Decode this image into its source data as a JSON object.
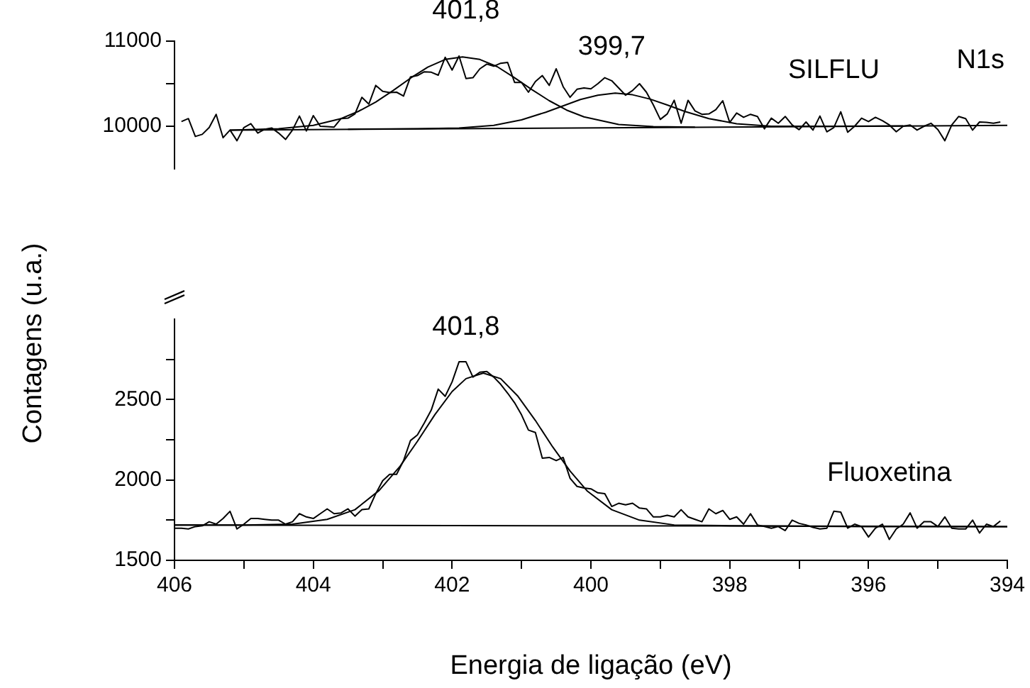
{
  "chart_data": [
    {
      "type": "line",
      "ylabel": "Contagens (u.a.)",
      "xlim": [
        406,
        394
      ],
      "ylim": [
        9500,
        11000
      ],
      "yticks": [
        {
          "value": 10000,
          "label": "10000"
        },
        {
          "value": 10500,
          "label": null
        },
        11000
      ],
      "tick_labels": "y",
      "grid": false,
      "legend": false,
      "marker": "none",
      "annotations": [
        "N1s",
        {
          "text": "401,8",
          "x": 401.8,
          "y": 10820
        },
        {
          "text": "399,7",
          "x": 399.7,
          "y": 10395
        },
        {
          "text": "SILFLU",
          "x": 396.5,
          "y": 10115
        }
      ],
      "series": [
        {
          "color": "#000000",
          "x": [
            405.9,
            405.8,
            405.7,
            405.6,
            405.5,
            405.4,
            405.3,
            405.2,
            405.1,
            405,
            404.9,
            404.8,
            404.7,
            404.6,
            404.5,
            404.4,
            404.3,
            404.2,
            404.1,
            404,
            403.9,
            403.8,
            403.7,
            403.6,
            403.5,
            403.4,
            403.3,
            403.2,
            403.1,
            403,
            402.9,
            402.8,
            402.7,
            402.6,
            402.5,
            402.4,
            402.3,
            402.2,
            402.1,
            402,
            401.9,
            401.8,
            401.7,
            401.6,
            401.5,
            401.4,
            401.3,
            401.2,
            401.1,
            401,
            400.9,
            400.8,
            400.7,
            400.6,
            400.5,
            400.4,
            400.3,
            400.2,
            400.1,
            400,
            399.9,
            399.8,
            399.7,
            399.6,
            399.5,
            399.4,
            399.3,
            399.2,
            399.1,
            399,
            398.9,
            398.8,
            398.7,
            398.6,
            398.5,
            398.4,
            398.3,
            398.2,
            398.1,
            398,
            397.9,
            397.8,
            397.7,
            397.6,
            397.5,
            397.4,
            397.3,
            397.2,
            397.1,
            397,
            396.9,
            396.8,
            396.7,
            396.6,
            396.5,
            396.4,
            396.3,
            396.2,
            396.1,
            396,
            395.9,
            395.8,
            395.7,
            395.6,
            395.5,
            395.4,
            395.3,
            395.2,
            395.1,
            395,
            394.9,
            394.8,
            394.7,
            394.6,
            394.5,
            394.4,
            394.3,
            394.2,
            394.1
          ],
          "values": [
            10055,
            10090,
            9880,
            9905,
            9985,
            10140,
            9865,
            9955,
            9830,
            9985,
            10030,
            9920,
            9965,
            9980,
            9920,
            9845,
            9955,
            10120,
            9945,
            10125,
            10000,
            9995,
            9990,
            10090,
            10095,
            10145,
            10340,
            10260,
            10480,
            10410,
            10395,
            10400,
            10355,
            10580,
            10595,
            10640,
            10635,
            10600,
            10810,
            10660,
            10825,
            10560,
            10570,
            10675,
            10730,
            10705,
            10740,
            10750,
            10515,
            10515,
            10400,
            10525,
            10595,
            10480,
            10675,
            10465,
            10340,
            10435,
            10450,
            10440,
            10500,
            10570,
            10535,
            10450,
            10365,
            10420,
            10500,
            10400,
            10250,
            10080,
            10145,
            10305,
            10035,
            10305,
            10180,
            10140,
            10145,
            10195,
            10300,
            10045,
            10155,
            10105,
            10140,
            10115,
            9970,
            10095,
            10035,
            10115,
            10015,
            9960,
            10050,
            9955,
            10120,
            9935,
            9985,
            10170,
            9930,
            10000,
            10095,
            10055,
            10105,
            10065,
            10015,
            9935,
            10000,
            10015,
            9955,
            10000,
            10035,
            9960,
            9830,
            10015,
            10115,
            10090,
            9955,
            10050,
            10045,
            10035,
            10050
          ]
        },
        {
          "color": "#000000",
          "x": [
            405.2,
            404.5,
            404,
            403.6,
            403.35,
            403.1,
            402.85,
            402.6,
            402.35,
            402.1,
            401.85,
            401.6,
            401.35,
            401.1,
            400.85,
            400.6,
            400.35,
            400.1,
            399.6,
            399.1,
            398.5
          ],
          "values": [
            9955,
            9970,
            10010,
            10090,
            10175,
            10285,
            10420,
            10565,
            10695,
            10785,
            10815,
            10785,
            10700,
            10570,
            10430,
            10300,
            10190,
            10110,
            10020,
            9995,
            9990
          ]
        },
        {
          "color": "#000000",
          "x": [
            403.5,
            402.5,
            401.9,
            401.4,
            401,
            400.65,
            400.4,
            400.15,
            399.9,
            399.65,
            399.4,
            399.15,
            398.9,
            398.65,
            398.3,
            397.9,
            397.4,
            396.5,
            395.5
          ],
          "values": [
            9965,
            9970,
            9980,
            10010,
            10075,
            10165,
            10240,
            10315,
            10365,
            10390,
            10370,
            10320,
            10250,
            10175,
            10090,
            10030,
            10000,
            10000,
            10005
          ]
        },
        {
          "color": "#000000",
          "x": [
            405.2,
            394
          ],
          "values": [
            9955,
            10010
          ]
        }
      ]
    },
    {
      "type": "line",
      "xlabel": "Energia de ligação (eV)",
      "xlim": [
        406,
        394
      ],
      "xticks": [
        406,
        {
          "value": 405,
          "label": null
        },
        404,
        {
          "value": 403,
          "label": null
        },
        402,
        {
          "value": 401,
          "label": null
        },
        400,
        {
          "value": 399,
          "label": null
        },
        398,
        {
          "value": 397,
          "label": null
        },
        396,
        {
          "value": 395,
          "label": null
        },
        394
      ],
      "ylim": [
        1500,
        3000
      ],
      "yticks": [
        1500,
        {
          "value": 1750,
          "label": null
        },
        2000,
        {
          "value": 2250,
          "label": null
        },
        2500,
        {
          "value": 2750,
          "label": null
        }
      ],
      "grid": false,
      "legend": false,
      "marker": "none",
      "annotations": [
        {
          "text": "401,8",
          "x": 401.8,
          "y": 2665
        },
        {
          "text": "Fluoxetina",
          "x": 395.7,
          "y": 1755
        }
      ],
      "series": [
        {
          "color": "#000000",
          "x": [
            406,
            405.9,
            405.8,
            405.7,
            405.6,
            405.5,
            405.4,
            405.3,
            405.2,
            405.1,
            405,
            404.9,
            404.8,
            404.7,
            404.6,
            404.5,
            404.4,
            404.3,
            404.2,
            404.1,
            404,
            403.9,
            403.8,
            403.7,
            403.6,
            403.5,
            403.4,
            403.3,
            403.2,
            403.1,
            403,
            402.9,
            402.8,
            402.7,
            402.6,
            402.5,
            402.4,
            402.3,
            402.2,
            402.1,
            402,
            401.9,
            401.8,
            401.7,
            401.6,
            401.5,
            401.4,
            401.3,
            401.2,
            401.1,
            401,
            400.9,
            400.8,
            400.7,
            400.6,
            400.5,
            400.4,
            400.3,
            400.2,
            400.1,
            400,
            399.9,
            399.8,
            399.7,
            399.6,
            399.5,
            399.4,
            399.3,
            399.2,
            399.1,
            399,
            398.9,
            398.8,
            398.7,
            398.6,
            398.5,
            398.4,
            398.3,
            398.2,
            398.1,
            398,
            397.9,
            397.8,
            397.7,
            397.6,
            397.5,
            397.4,
            397.3,
            397.2,
            397.1,
            397,
            396.9,
            396.8,
            396.7,
            396.6,
            396.5,
            396.4,
            396.3,
            396.2,
            396.1,
            396,
            395.9,
            395.8,
            395.7,
            395.6,
            395.5,
            395.4,
            395.3,
            395.2,
            395.1,
            395,
            394.9,
            394.8,
            394.7,
            394.6,
            394.5,
            394.4,
            394.3,
            394.2,
            394.1
          ],
          "values": [
            1700,
            1700,
            1695,
            1710,
            1715,
            1740,
            1725,
            1760,
            1805,
            1695,
            1725,
            1760,
            1760,
            1755,
            1750,
            1750,
            1725,
            1740,
            1790,
            1770,
            1760,
            1790,
            1820,
            1790,
            1795,
            1820,
            1775,
            1815,
            1820,
            1915,
            1995,
            2035,
            2035,
            2120,
            2245,
            2280,
            2355,
            2435,
            2565,
            2520,
            2610,
            2735,
            2735,
            2640,
            2670,
            2675,
            2640,
            2595,
            2540,
            2480,
            2405,
            2310,
            2295,
            2135,
            2140,
            2120,
            2140,
            2010,
            1960,
            1950,
            1945,
            1920,
            1915,
            1835,
            1855,
            1845,
            1855,
            1825,
            1820,
            1770,
            1770,
            1780,
            1770,
            1815,
            1770,
            1755,
            1740,
            1820,
            1790,
            1810,
            1755,
            1770,
            1725,
            1790,
            1720,
            1710,
            1700,
            1710,
            1685,
            1750,
            1730,
            1720,
            1705,
            1695,
            1700,
            1805,
            1800,
            1700,
            1725,
            1710,
            1645,
            1700,
            1725,
            1630,
            1695,
            1725,
            1795,
            1700,
            1740,
            1740,
            1710,
            1770,
            1700,
            1695,
            1695,
            1750,
            1670,
            1725,
            1710,
            1745
          ]
        },
        {
          "color": "#000000",
          "x": [
            406,
            405,
            404.3,
            403.8,
            403.4,
            403.05,
            402.75,
            402.5,
            402.25,
            402,
            401.8,
            401.55,
            401.3,
            401.05,
            400.8,
            400.55,
            400.3,
            400.05,
            399.7,
            399.3,
            398.8,
            398,
            396,
            394
          ],
          "values": [
            1720,
            1720,
            1725,
            1755,
            1815,
            1935,
            2085,
            2240,
            2405,
            2550,
            2630,
            2665,
            2630,
            2520,
            2370,
            2205,
            2055,
            1930,
            1815,
            1750,
            1720,
            1715,
            1710,
            1710
          ]
        },
        {
          "color": "#000000",
          "x": [
            406,
            394
          ],
          "values": [
            1720,
            1710
          ]
        }
      ]
    }
  ]
}
